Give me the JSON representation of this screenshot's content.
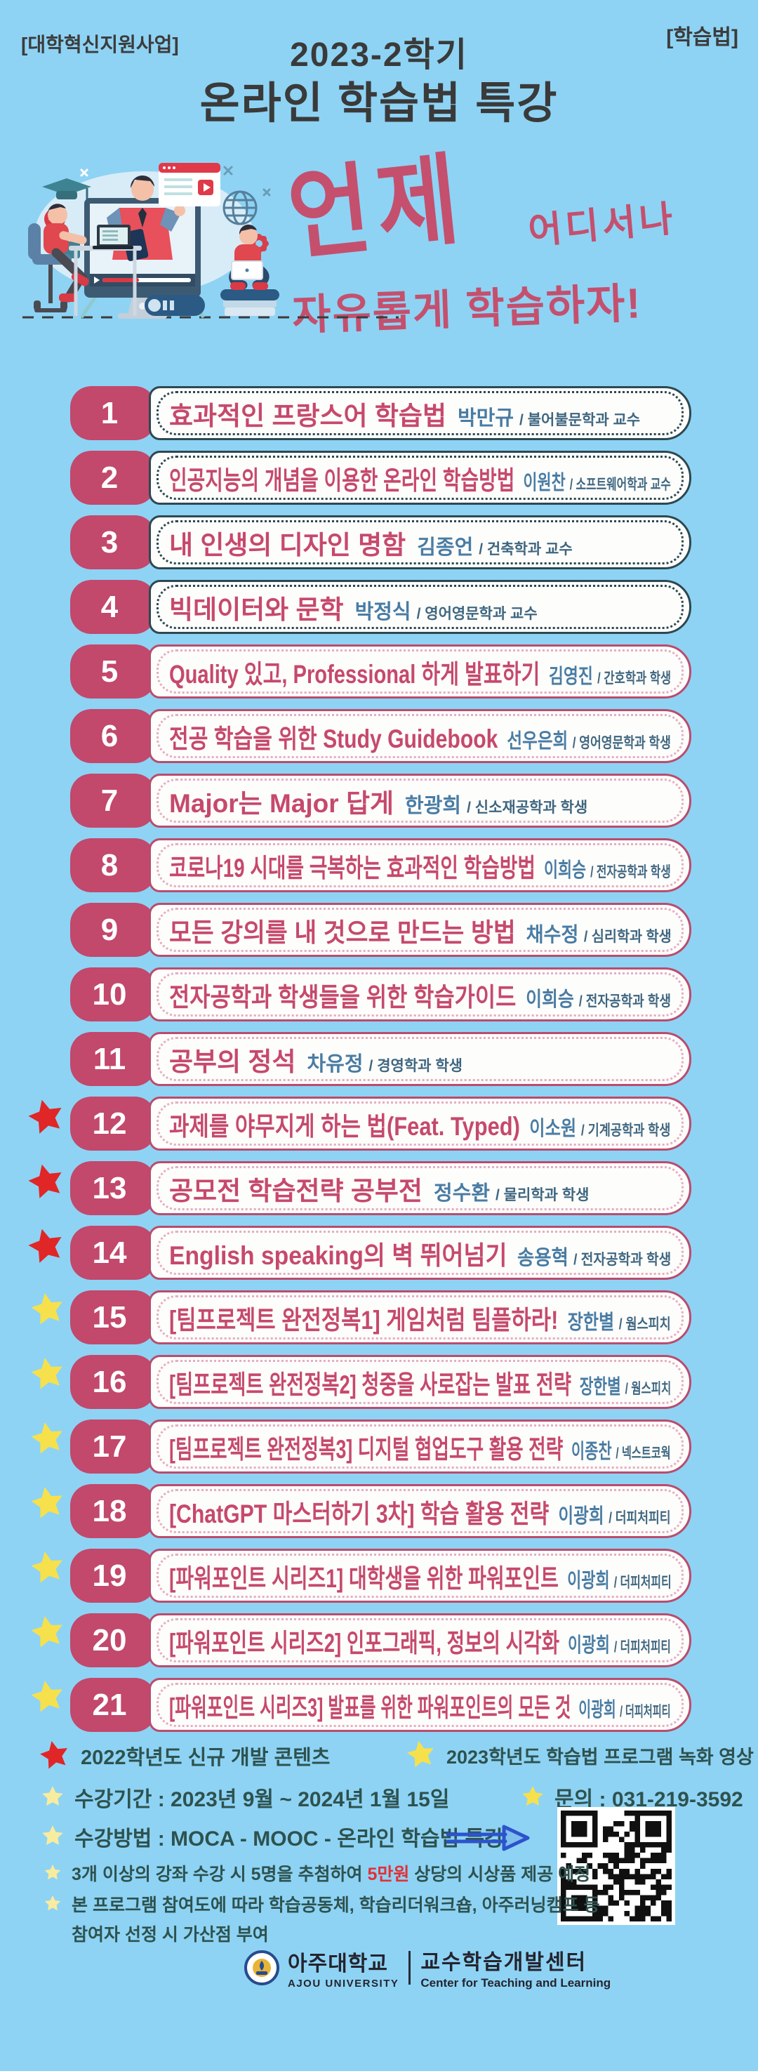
{
  "header": {
    "top_left": "[대학혁신지원사업]",
    "top_right": "[학습법]",
    "title_line1": "2023-2학기",
    "title_line2": "온라인 학습법 특강"
  },
  "slogan": {
    "word1": "언제",
    "word2": "어디서나",
    "word3": "자유롭게 학습하자!"
  },
  "lectures": [
    {
      "num": "1",
      "title": "효과적인 프랑스어 학습법",
      "name": "박만규",
      "affil": "/ 불어불문학과 교수",
      "theme": "dark",
      "star": "none"
    },
    {
      "num": "2",
      "title": "인공지능의 개념을 이용한 온라인 학습방법",
      "name": "이원찬",
      "affil": "/ 소프트웨어학과 교수",
      "theme": "dark",
      "star": "none"
    },
    {
      "num": "3",
      "title": "내 인생의 디자인 명함",
      "name": "김종언",
      "affil": "/ 건축학과 교수",
      "theme": "dark",
      "star": "none"
    },
    {
      "num": "4",
      "title": "빅데이터와 문학",
      "name": "박정식",
      "affil": "/ 영어영문학과 교수",
      "theme": "dark",
      "star": "none"
    },
    {
      "num": "5",
      "title": "Quality 있고, Professional 하게 발표하기",
      "name": "김영진",
      "affil": "/ 간호학과 학생",
      "theme": "pink",
      "star": "none"
    },
    {
      "num": "6",
      "title": "전공 학습을 위한 Study Guidebook",
      "name": "선우은희",
      "affil": "/ 영어영문학과 학생",
      "theme": "pink",
      "star": "none"
    },
    {
      "num": "7",
      "title": "Major는 Major 답게",
      "name": "한광희",
      "affil": "/ 신소재공학과 학생",
      "theme": "pink",
      "star": "none"
    },
    {
      "num": "8",
      "title": "코로나19 시대를 극복하는 효과적인 학습방법",
      "name": "이희승",
      "affil": "/ 전자공학과 학생",
      "theme": "pink",
      "star": "none"
    },
    {
      "num": "9",
      "title": "모든 강의를 내 것으로 만드는 방법",
      "name": "채수정",
      "affil": "/ 심리학과 학생",
      "theme": "pink",
      "star": "none"
    },
    {
      "num": "10",
      "title": "전자공학과 학생들을 위한 학습가이드",
      "name": "이희승",
      "affil": "/ 전자공학과 학생",
      "theme": "pink",
      "star": "none"
    },
    {
      "num": "11",
      "title": "공부의 정석",
      "name": "차유정",
      "affil": "/ 경영학과 학생",
      "theme": "pink",
      "star": "none"
    },
    {
      "num": "12",
      "title": "과제를 야무지게 하는 법(Feat. Typed)",
      "name": "이소원",
      "affil": "/ 기계공학과 학생",
      "theme": "pink",
      "star": "red"
    },
    {
      "num": "13",
      "title": "공모전 학습전략 공부전",
      "name": "정수환",
      "affil": "/ 물리학과 학생",
      "theme": "pink",
      "star": "red"
    },
    {
      "num": "14",
      "title": "English speaking의 벽 뛰어넘기",
      "name": "송용혁",
      "affil": "/ 전자공학과 학생",
      "theme": "pink",
      "star": "red"
    },
    {
      "num": "15",
      "title": "[팀프로젝트 완전정복1] 게임처럼 팀플하라!",
      "name": "장한별",
      "affil": "/ 웜스피치",
      "theme": "pink",
      "star": "yellow"
    },
    {
      "num": "16",
      "title": "[팀프로젝트 완전정복2] 청중을 사로잡는 발표 전략",
      "name": "장한별",
      "affil": "/ 웜스피치",
      "theme": "pink",
      "star": "yellow"
    },
    {
      "num": "17",
      "title": "[팀프로젝트 완전정복3] 디지털 협업도구 활용 전략",
      "name": "이종찬",
      "affil": "/ 넥스트코웍",
      "theme": "pink",
      "star": "yellow"
    },
    {
      "num": "18",
      "title": "[ChatGPT 마스터하기 3차] 학습 활용 전략",
      "name": "이광희",
      "affil": "/ 더피처피티",
      "theme": "pink",
      "star": "yellow"
    },
    {
      "num": "19",
      "title": "[파워포인트 시리즈1] 대학생을 위한 파워포인트",
      "name": "이광희",
      "affil": "/ 더피처피티",
      "theme": "pink",
      "star": "yellow"
    },
    {
      "num": "20",
      "title": "[파워포인트 시리즈2] 인포그래픽, 정보의 시각화",
      "name": "이광희",
      "affil": "/ 더피처피티",
      "theme": "pink",
      "star": "yellow"
    },
    {
      "num": "21",
      "title": "[파워포인트 시리즈3] 발표를 위한 파워포인트의 모든 것",
      "name": "이광희",
      "affil": "/ 더피처피티",
      "theme": "pink",
      "star": "yellow"
    }
  ],
  "legend": {
    "red_label": "2022학년도 신규 개발 콘텐츠",
    "yellow_label": "2023학년도 학습법 프로그램 녹화 영상"
  },
  "info": {
    "period": "수강기간 : 2023년 9월 ~ 2024년 1월 15일",
    "contact": "문의 : 031-219-3592",
    "method": "수강방법 : MOCA - MOOC - 온라인 학습법 특강",
    "note1_pre": "3개 이상의 강좌 수강 시 5명을 추첨하여 ",
    "note1_highlight": "5만원",
    "note1_post": " 상당의 시상품 제공 예정",
    "note2": "본 프로그램 참여도에 따라 학습공동체, 학습리더워크숍, 아주러닝캠프 등",
    "note3": "참여자 선정 시 가산점 부여"
  },
  "footer": {
    "univ_kr": "아주대학교",
    "univ_en": "AJOU UNIVERSITY",
    "center_kr": "교수학습개발센터",
    "center_en": "Center for Teaching and Learning"
  },
  "colors": {
    "background": "#8ed3f4",
    "accent_pink": "#c2486c",
    "dark_border": "#2d4852",
    "pink_border": "#b94c6e",
    "instructor_blue": "#497ca4",
    "text_dark_teal": "#2e524f",
    "star_red": "#e02626",
    "star_yellow": "#f6e14c",
    "highlight_red": "#e23036",
    "arrow_blue": "#2d53cc"
  }
}
